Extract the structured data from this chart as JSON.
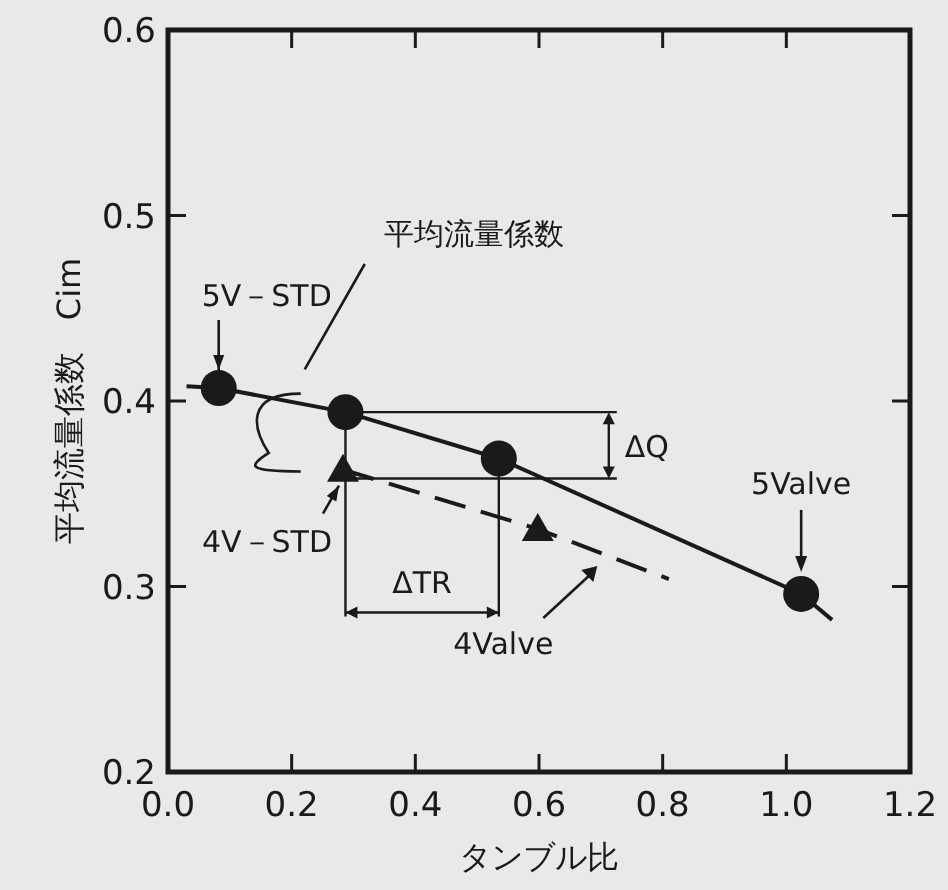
{
  "chart_data": {
    "type": "line",
    "xlabel": "タンブル比",
    "ylabel": "平均流量係数　Cim",
    "xlim": [
      0.0,
      1.2
    ],
    "ylim": [
      0.2,
      0.6
    ],
    "xticks": [
      {
        "value": 0.0,
        "label": "0.0"
      },
      {
        "value": 0.2,
        "label": "0.2"
      },
      {
        "value": 0.4,
        "label": "0.4"
      },
      {
        "value": 0.6,
        "label": "0.6"
      },
      {
        "value": 0.8,
        "label": "0.8"
      },
      {
        "value": 1.0,
        "label": "1.0"
      },
      {
        "value": 1.2,
        "label": "1.2"
      }
    ],
    "yticks": [
      {
        "value": 0.2,
        "label": "0.2"
      },
      {
        "value": 0.3,
        "label": "0.3"
      },
      {
        "value": 0.4,
        "label": "0.4"
      },
      {
        "value": 0.5,
        "label": "0.5"
      },
      {
        "value": 0.6,
        "label": "0.6"
      }
    ],
    "grid": false,
    "series": [
      {
        "name": "5Valve",
        "type": "line",
        "color": "#1a1a1a",
        "line_style": "solid",
        "marker": "none",
        "x": [
          0.03,
          0.082,
          0.287,
          0.535,
          1.024,
          1.074
        ],
        "values": [
          0.408,
          0.407,
          0.394,
          0.369,
          0.296,
          0.282
        ]
      },
      {
        "type": "scatter",
        "color": "#1a1a1a",
        "marker": "circle",
        "x": [
          0.082,
          0.287,
          0.535,
          1.024
        ],
        "values": [
          0.407,
          0.394,
          0.369,
          0.296
        ]
      },
      {
        "name": "4Valve",
        "type": "line",
        "color": "#1a1a1a",
        "line_style": "dashed",
        "marker": "none",
        "x": [
          0.283,
          0.598,
          0.81
        ],
        "values": [
          0.363,
          0.331,
          0.304
        ]
      },
      {
        "type": "scatter",
        "color": "#1a1a1a",
        "marker": "triangle",
        "x": [
          0.283,
          0.598
        ],
        "values": [
          0.363,
          0.331
        ]
      }
    ],
    "annotations": [
      "平均流量係数",
      {
        "text": "5V－STD",
        "x": 0.082,
        "y": 0.407
      },
      {
        "text": "4V－STD",
        "x": 0.283,
        "y": 0.363
      },
      {
        "text": "ΔQ",
        "x": 0.287,
        "y": 0.394
      },
      "ΔTR"
    ]
  }
}
